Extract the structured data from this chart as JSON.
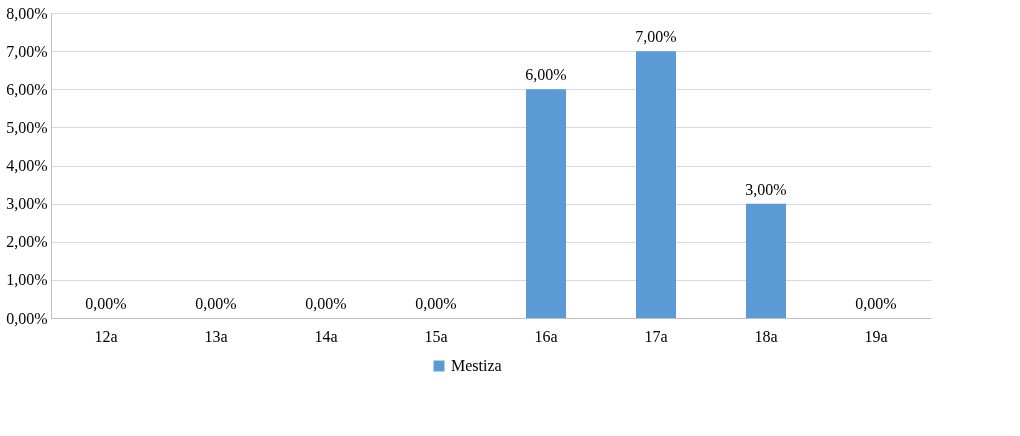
{
  "chart_data": {
    "type": "bar",
    "categories": [
      "12a",
      "13a",
      "14a",
      "15a",
      "16a",
      "17a",
      "18a",
      "19a"
    ],
    "series": [
      {
        "name": "Mestiza",
        "color": "#5b9bd5",
        "values": [
          0,
          0,
          0,
          0,
          6,
          7,
          3,
          0
        ],
        "value_labels": [
          "0,00%",
          "0,00%",
          "0,00%",
          "0,00%",
          "6,00%",
          "7,00%",
          "3,00%",
          "0,00%"
        ]
      }
    ],
    "ylim": [
      0,
      8
    ],
    "yticks": [
      {
        "value": 0,
        "label": "0,00%"
      },
      {
        "value": 1,
        "label": "1,00%"
      },
      {
        "value": 2,
        "label": "2,00%"
      },
      {
        "value": 3,
        "label": "3,00%"
      },
      {
        "value": 4,
        "label": "4,00%"
      },
      {
        "value": 5,
        "label": "5,00%"
      },
      {
        "value": 6,
        "label": "6,00%"
      },
      {
        "value": 7,
        "label": "7,00%"
      },
      {
        "value": 8,
        "label": "8,00%"
      }
    ],
    "grid": "y",
    "legend": "bottom"
  }
}
